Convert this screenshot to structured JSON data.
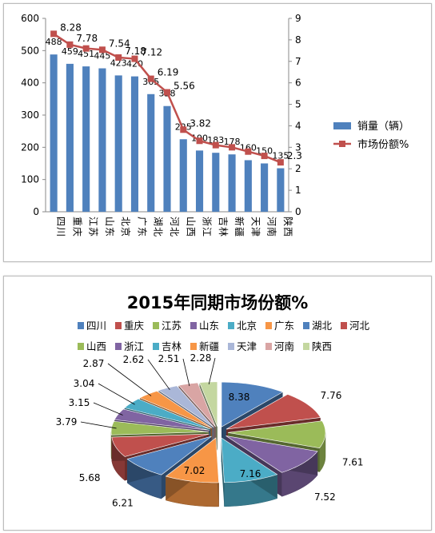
{
  "chart_data": [
    {
      "type": "bar",
      "categories": [
        "四川",
        "重庆",
        "江苏",
        "山东",
        "北京",
        "广东",
        "湖北",
        "河北",
        "山西",
        "浙江",
        "吉林",
        "新疆",
        "天津",
        "河南",
        "陕西"
      ],
      "series": [
        {
          "name": "销量（辆）",
          "type": "bar",
          "axis": "left",
          "values": [
            488,
            459,
            451,
            445,
            423,
            420,
            365,
            328,
            225,
            190,
            183,
            178,
            160,
            150,
            135
          ],
          "labels": [
            "488",
            "459",
            "451",
            "445",
            "423",
            "420",
            "365",
            "328",
            "225",
            "190",
            "183",
            "178",
            "160",
            "150",
            "135"
          ],
          "color": "#4f81bd"
        },
        {
          "name": "市场份额%",
          "type": "line",
          "axis": "right",
          "values": [
            8.28,
            7.78,
            7.6,
            7.54,
            7.18,
            7.12,
            6.19,
            5.56,
            3.82,
            3.3,
            3.1,
            3.0,
            2.8,
            2.6,
            2.3
          ],
          "labels": [
            "8.28",
            "7.78",
            "",
            "7.54",
            "7.18",
            "7.12",
            "6.19",
            "5.56",
            "3.82",
            "",
            "",
            "",
            "",
            "",
            "2.3"
          ],
          "color": "#c0504d"
        }
      ],
      "y_left": {
        "range": [
          0,
          600
        ],
        "ticks": [
          "0",
          "100",
          "200",
          "300",
          "400",
          "500",
          "600"
        ]
      },
      "y_right": {
        "range": [
          0,
          9
        ],
        "ticks": [
          "0",
          "1",
          "2",
          "3",
          "4",
          "5",
          "6",
          "7",
          "8",
          "9"
        ]
      },
      "legend": "right",
      "grid": false
    },
    {
      "type": "pie",
      "title": "2015年同期市场份额%",
      "categories": [
        "四川",
        "重庆",
        "江苏",
        "山东",
        "北京",
        "广东",
        "湖北",
        "河北",
        "山西",
        "浙江",
        "吉林",
        "新疆",
        "天津",
        "河南",
        "陕西"
      ],
      "values": [
        8.38,
        7.76,
        7.61,
        7.52,
        7.16,
        7.02,
        6.21,
        5.68,
        3.79,
        3.15,
        3.04,
        2.87,
        2.62,
        2.51,
        2.28
      ],
      "labels": [
        "8.38",
        "7.76",
        "7.61",
        "7.52",
        "7.16",
        "7.02",
        "6.21",
        "5.68",
        "3.79",
        "3.15",
        "3.04",
        "2.87",
        "2.62",
        "2.51",
        "2.28"
      ],
      "colors": [
        "#4f81bd",
        "#c0504d",
        "#9bbb59",
        "#8064a2",
        "#4bacc6",
        "#f79646",
        "#4f81bd",
        "#c0504d",
        "#9bbb59",
        "#8064a2",
        "#4bacc6",
        "#f79646",
        "#aab7d8",
        "#d9a5a4",
        "#c4d7a0"
      ],
      "legend": "top",
      "style": "exploded 3d"
    }
  ]
}
